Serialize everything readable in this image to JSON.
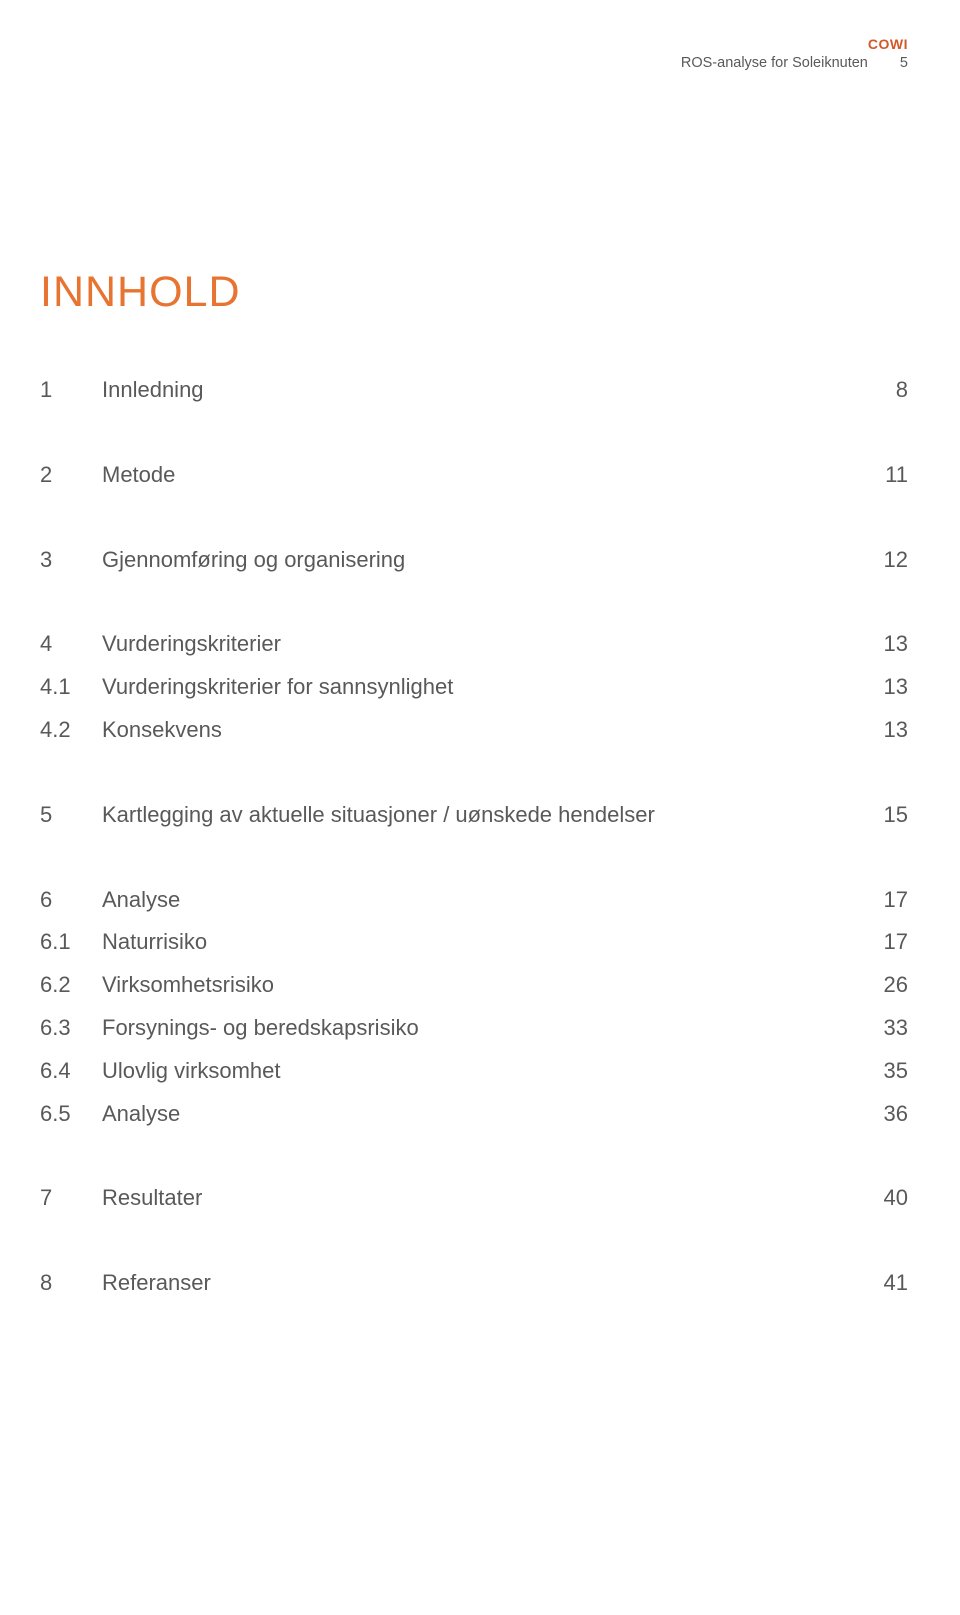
{
  "brand": "COWI",
  "running_header": "ROS-analyse for Soleiknuten",
  "running_page": "5",
  "title": "INNHOLD",
  "accent_color": "#e87432",
  "brand_color": "#d15a2b",
  "text_color": "#595959",
  "background_color": "#ffffff",
  "font_size_body": 22,
  "font_size_title": 43,
  "toc": [
    {
      "num": "1",
      "label": "Innledning",
      "page": "8",
      "gap_before": false
    },
    {
      "num": "2",
      "label": "Metode",
      "page": "11",
      "gap_before": true
    },
    {
      "num": "3",
      "label": "Gjennomføring og organisering",
      "page": "12",
      "gap_before": true
    },
    {
      "num": "4",
      "label": "Vurderingskriterier",
      "page": "13",
      "gap_before": true
    },
    {
      "num": "4.1",
      "label": "Vurderingskriterier for sannsynlighet",
      "page": "13",
      "gap_before": false
    },
    {
      "num": "4.2",
      "label": "Konsekvens",
      "page": "13",
      "gap_before": false
    },
    {
      "num": "5",
      "label": "Kartlegging av aktuelle situasjoner / uønskede hendelser",
      "page": "15",
      "gap_before": true
    },
    {
      "num": "6",
      "label": "Analyse",
      "page": "17",
      "gap_before": true
    },
    {
      "num": "6.1",
      "label": "Naturrisiko",
      "page": "17",
      "gap_before": false
    },
    {
      "num": "6.2",
      "label": "Virksomhetsrisiko",
      "page": "26",
      "gap_before": false
    },
    {
      "num": "6.3",
      "label": "Forsynings- og beredskapsrisiko",
      "page": "33",
      "gap_before": false
    },
    {
      "num": "6.4",
      "label": "Ulovlig virksomhet",
      "page": "35",
      "gap_before": false
    },
    {
      "num": "6.5",
      "label": "Analyse",
      "page": "36",
      "gap_before": false
    },
    {
      "num": "7",
      "label": "Resultater",
      "page": "40",
      "gap_before": true
    },
    {
      "num": "8",
      "label": "Referanser",
      "page": "41",
      "gap_before": true
    }
  ]
}
